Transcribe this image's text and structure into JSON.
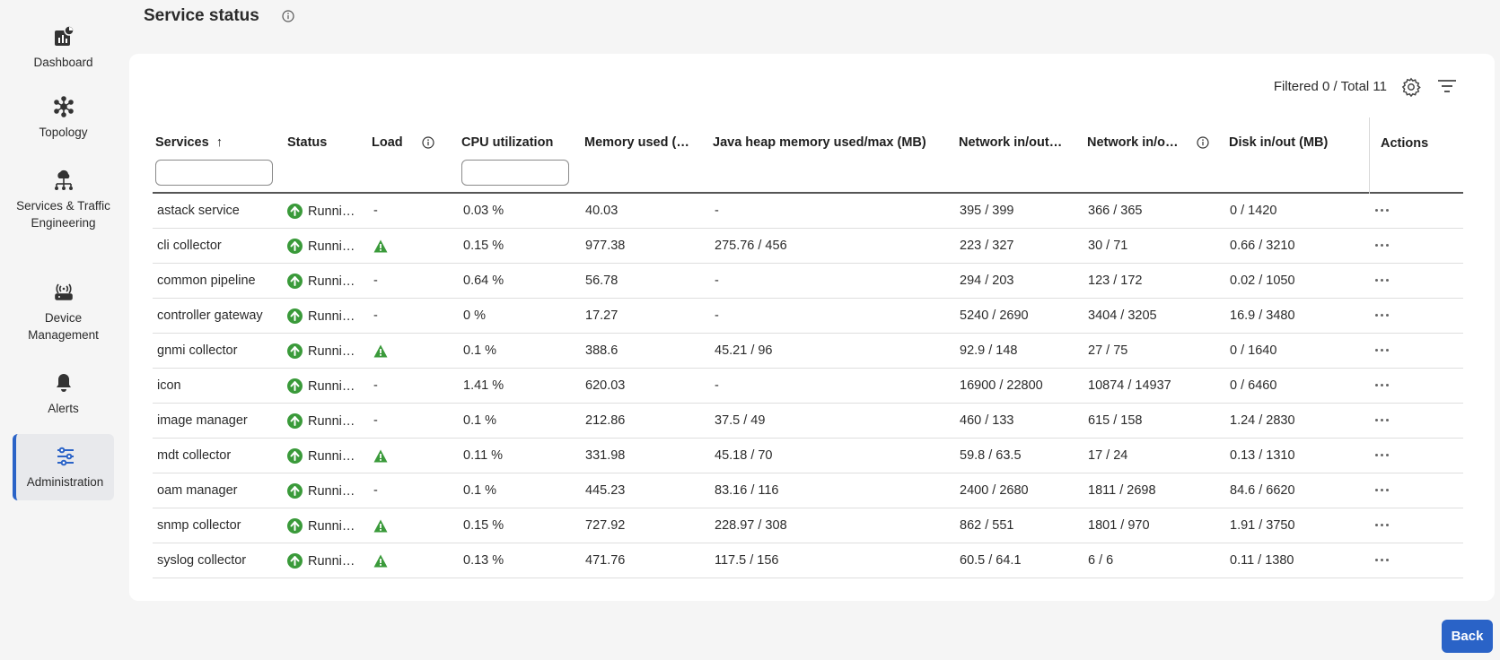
{
  "sidebar": {
    "items": [
      {
        "label": "Dashboard",
        "icon": "dashboard-icon"
      },
      {
        "label": "Topology",
        "icon": "topology-icon"
      },
      {
        "label": "Services & Traffic Engineering",
        "icon": "services-icon"
      },
      {
        "label": "Device Management",
        "icon": "device-icon"
      },
      {
        "label": "Alerts",
        "icon": "bell-icon"
      },
      {
        "label": "Administration",
        "icon": "sliders-icon",
        "active": true
      }
    ]
  },
  "header": {
    "title": "Service status"
  },
  "toolbar": {
    "filter_summary": "Filtered 0 / Total 11"
  },
  "table": {
    "columns": [
      "Services",
      "Status",
      "Load",
      "CPU utilization",
      "Memory used (…",
      "Java heap memory used/max (MB)",
      "Network in/out…",
      "Network in/o…",
      "Disk in/out (MB)",
      "Actions"
    ],
    "sort_indicator": "↑",
    "rows": [
      {
        "service": "astack service",
        "status": "Runni…",
        "load": "-",
        "cpu": "0.03 %",
        "memory": "40.03",
        "java": "-",
        "net1": "395 / 399",
        "net2": "366 / 365",
        "disk": "0 / 1420"
      },
      {
        "service": "cli collector",
        "status": "Runni…",
        "load": "warning",
        "cpu": "0.15 %",
        "memory": "977.38",
        "java": "275.76 / 456",
        "net1": "223 / 327",
        "net2": "30 / 71",
        "disk": "0.66 / 3210"
      },
      {
        "service": "common pipeline",
        "status": "Runni…",
        "load": "-",
        "cpu": "0.64 %",
        "memory": "56.78",
        "java": "-",
        "net1": "294 / 203",
        "net2": "123 / 172",
        "disk": "0.02 / 1050"
      },
      {
        "service": "controller gateway",
        "status": "Runni…",
        "load": "-",
        "cpu": "0 %",
        "memory": "17.27",
        "java": "-",
        "net1": "5240 / 2690",
        "net2": "3404 / 3205",
        "disk": "16.9 / 3480"
      },
      {
        "service": "gnmi collector",
        "status": "Runni…",
        "load": "warning",
        "cpu": "0.1 %",
        "memory": "388.6",
        "java": "45.21 / 96",
        "net1": "92.9 / 148",
        "net2": "27 / 75",
        "disk": "0 / 1640"
      },
      {
        "service": "icon",
        "status": "Runni…",
        "load": "-",
        "cpu": "1.41 %",
        "memory": "620.03",
        "java": "-",
        "net1": "16900 / 22800",
        "net2": "10874 / 14937",
        "disk": "0 / 6460"
      },
      {
        "service": "image manager",
        "status": "Runni…",
        "load": "-",
        "cpu": "0.1 %",
        "memory": "212.86",
        "java": "37.5 / 49",
        "net1": "460 / 133",
        "net2": "615 / 158",
        "disk": "1.24 / 2830"
      },
      {
        "service": "mdt collector",
        "status": "Runni…",
        "load": "warning",
        "cpu": "0.11 %",
        "memory": "331.98",
        "java": "45.18 / 70",
        "net1": "59.8 / 63.5",
        "net2": "17 / 24",
        "disk": "0.13 / 1310"
      },
      {
        "service": "oam manager",
        "status": "Runni…",
        "load": "-",
        "cpu": "0.1 %",
        "memory": "445.23",
        "java": "83.16 / 116",
        "net1": "2400 / 2680",
        "net2": "1811 / 2698",
        "disk": "84.6 / 6620"
      },
      {
        "service": "snmp collector",
        "status": "Runni…",
        "load": "warning",
        "cpu": "0.15 %",
        "memory": "727.92",
        "java": "228.97 / 308",
        "net1": "862 / 551",
        "net2": "1801 / 970",
        "disk": "1.91 / 3750"
      },
      {
        "service": "syslog collector",
        "status": "Runni…",
        "load": "warning",
        "cpu": "0.13 %",
        "memory": "471.76",
        "java": "117.5 / 156",
        "net1": "60.5 / 64.1",
        "net2": "6 / 6",
        "disk": "0.11 / 1380"
      }
    ]
  },
  "footer": {
    "back_label": "Back"
  },
  "colors": {
    "accent": "#2a63c7",
    "running_green": "#3a9a3a",
    "warning_green": "#3a9a3a"
  }
}
